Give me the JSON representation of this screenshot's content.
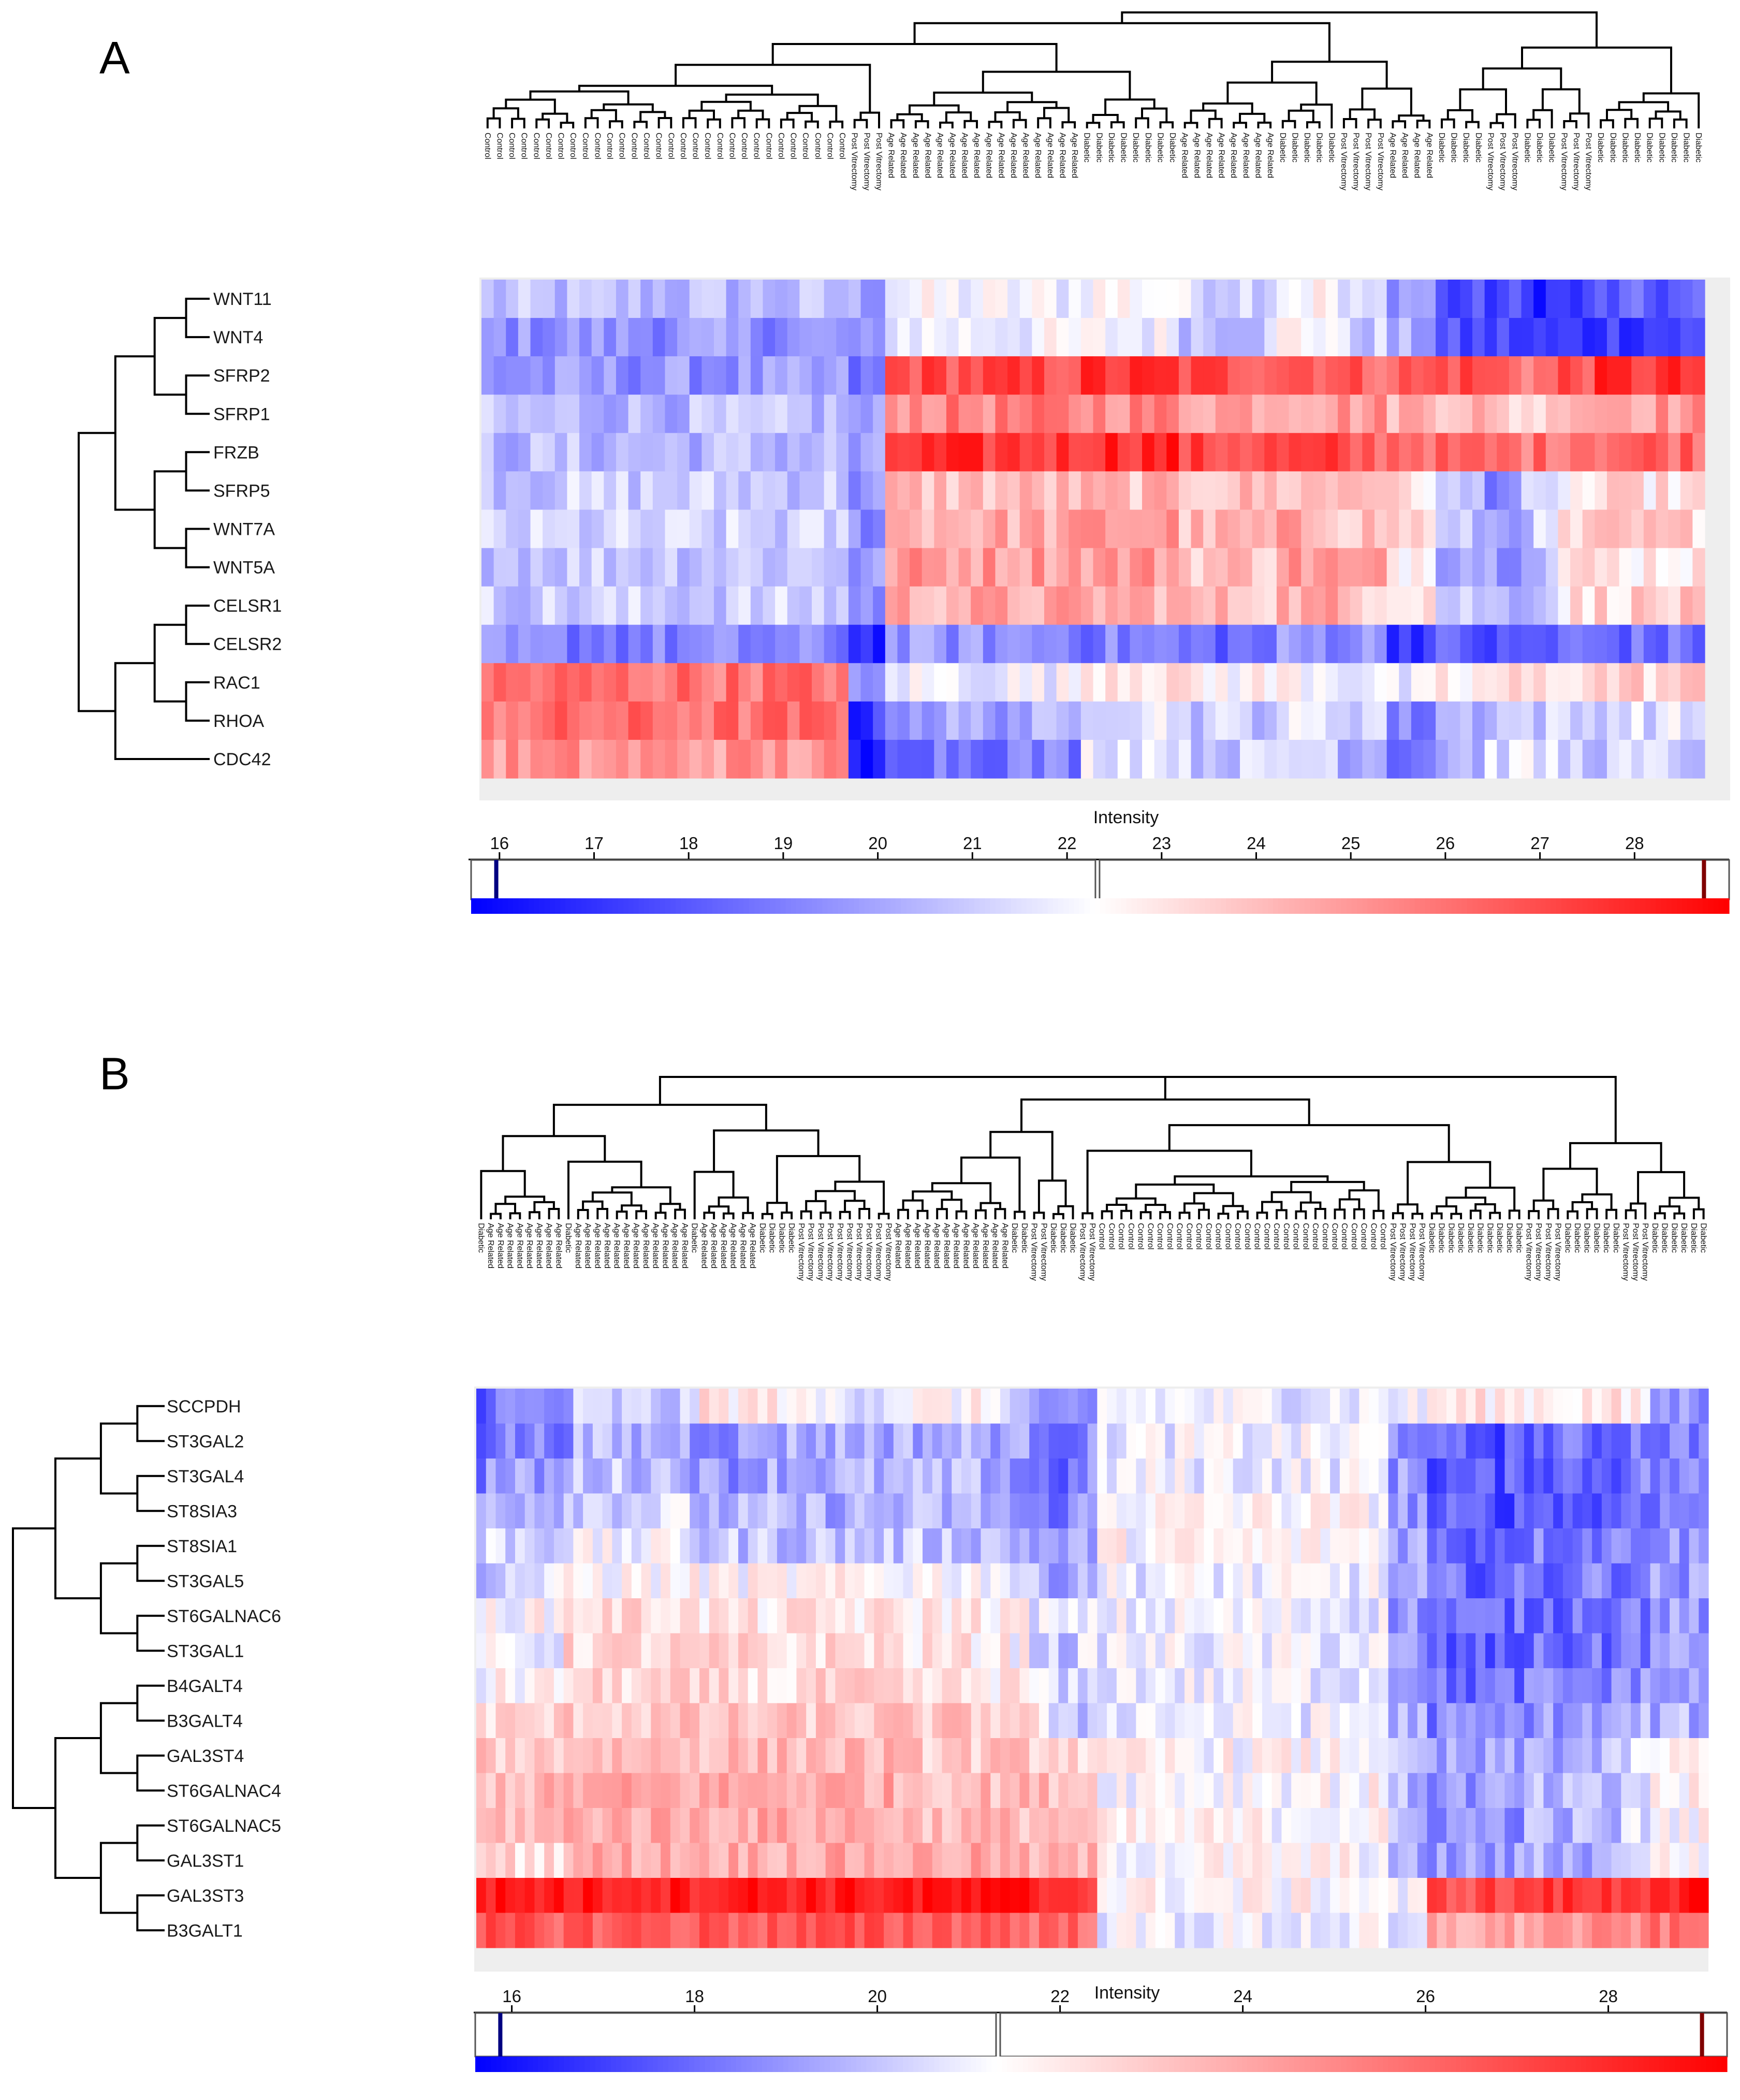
{
  "colors": {
    "low": "#0000ff",
    "mid": "#ffffff",
    "high": "#ff0000",
    "panel_bg": "#eeeeee",
    "marker_low": "#000080",
    "marker_high": "#800000"
  },
  "chart_data": [
    {
      "panel": "A",
      "type": "heatmap",
      "colorbar_title": "Intensity",
      "colorbar_ticks": [
        16,
        17,
        18,
        19,
        20,
        21,
        22,
        23,
        24,
        25,
        26,
        27,
        28
      ],
      "color_range": [
        15.7,
        29.0
      ],
      "color_mid": 22.3,
      "genes": [
        "WNT11",
        "WNT4",
        "SFRP2",
        "SFRP1",
        "FRZB",
        "SFRP5",
        "WNT7A",
        "WNT5A",
        "CELSR1",
        "CELSR2",
        "RAC1",
        "RHOA",
        "CDC42"
      ],
      "sample_groups": [
        {
          "label": "Control",
          "count": 30
        },
        {
          "label": "Post Vitrectomy",
          "count": 3
        },
        {
          "label": "Age Related",
          "count": 16
        },
        {
          "label": "Diabetic",
          "count": 8
        },
        {
          "label": "Age Related",
          "count": 8
        },
        {
          "label": "Diabetic",
          "count": 5
        },
        {
          "label": "Post Vitrectomy",
          "count": 4
        },
        {
          "label": "Age Related",
          "count": 4
        },
        {
          "label": "Diabetic",
          "count": 4
        },
        {
          "label": "Post Vitrectomy",
          "count": 3
        },
        {
          "label": "Diabetic",
          "count": 3
        },
        {
          "label": "Post Vitrectomy",
          "count": 3
        },
        {
          "label": "Diabetic",
          "count": 9
        }
      ],
      "gene_group_means": [
        [
          20.5,
          20,
          22,
          22.5,
          21.5,
          22.5,
          21,
          20,
          17.5,
          17.5,
          17,
          17,
          18
        ],
        [
          19.5,
          19,
          22,
          22,
          21,
          22.5,
          21,
          20,
          17.5,
          17.5,
          17,
          17,
          17.5
        ],
        [
          19.5,
          18.5,
          27,
          27.5,
          27,
          27,
          26.5,
          26.5,
          27,
          26.5,
          26,
          27,
          27.5
        ],
        [
          20.5,
          19.5,
          25.5,
          25.5,
          25,
          25,
          25,
          24.5,
          24.5,
          23.5,
          23.5,
          25,
          25
        ],
        [
          20.5,
          19.5,
          27.5,
          28,
          27,
          27,
          26.5,
          26.5,
          26,
          26,
          26,
          26.5,
          26.5
        ],
        [
          21,
          19.5,
          24,
          24,
          24,
          24,
          24.5,
          23,
          20.5,
          19.5,
          20.5,
          22.5,
          23
        ],
        [
          21,
          19.5,
          24.5,
          25,
          24,
          24.5,
          24,
          23.5,
          20.5,
          20,
          21,
          23,
          23.5
        ],
        [
          21,
          19.5,
          25,
          25,
          24,
          25,
          24.5,
          23,
          20.5,
          20,
          21,
          23,
          23
        ],
        [
          21,
          19.5,
          24.5,
          24.5,
          24,
          24.5,
          24,
          23.5,
          21,
          20.5,
          21,
          23,
          23.5
        ],
        [
          19,
          17,
          19.5,
          19,
          18.5,
          19.5,
          19.5,
          17.5,
          18,
          17.5,
          18,
          18.5,
          18.5
        ],
        [
          26,
          19,
          22,
          23.5,
          22.5,
          22.5,
          22,
          21.5,
          22.5,
          23,
          23,
          23.5,
          23.5
        ],
        [
          26,
          17,
          20,
          22,
          21,
          21.5,
          21.5,
          19,
          20.5,
          21,
          21,
          21,
          21.5
        ],
        [
          25,
          16,
          19,
          22,
          21,
          21.5,
          20.5,
          19,
          20.5,
          21.5,
          21.5,
          21,
          21
        ]
      ]
    },
    {
      "panel": "B",
      "type": "heatmap",
      "colorbar_title": "Intensity",
      "colorbar_ticks": [
        16,
        18,
        20,
        22,
        24,
        26,
        28
      ],
      "color_range": [
        15.6,
        29.3
      ],
      "color_mid": 21.3,
      "genes": [
        "SCCPDH",
        "ST3GAL2",
        "ST3GAL4",
        "ST8SIA3",
        "ST8SIA1",
        "ST3GAL5",
        "ST6GALNAC6",
        "ST3GAL1",
        "B4GALT4",
        "B3GALT4",
        "GAL3ST4",
        "ST6GALNAC4",
        "ST6GALNAC5",
        "GAL3ST1",
        "GAL3ST3",
        "B3GALT1"
      ],
      "sample_groups": [
        {
          "label": "Diabetic",
          "count": 1
        },
        {
          "label": "Age Related",
          "count": 8
        },
        {
          "label": "Diabetic",
          "count": 1
        },
        {
          "label": "Age Related",
          "count": 12
        },
        {
          "label": "Diabetic",
          "count": 1
        },
        {
          "label": "Age Related",
          "count": 6
        },
        {
          "label": "Diabetic",
          "count": 4
        },
        {
          "label": "Post Vitrectomy",
          "count": 10
        },
        {
          "label": "Age Related",
          "count": 12
        },
        {
          "label": "Diabetic",
          "count": 2
        },
        {
          "label": "Post Vitrectomy",
          "count": 2
        },
        {
          "label": "Diabetic",
          "count": 3
        },
        {
          "label": "Post Vitrectomy",
          "count": 2
        },
        {
          "label": "Control",
          "count": 30
        },
        {
          "label": "Post Vitrectomy",
          "count": 4
        },
        {
          "label": "Diabetic",
          "count": 10
        },
        {
          "label": "Post Vitrectomy",
          "count": 4
        },
        {
          "label": "Diabetic",
          "count": 6
        },
        {
          "label": "Post Vitrectomy",
          "count": 3
        },
        {
          "label": "Diabetic",
          "count": 6
        }
      ],
      "gene_group_means": [
        [
          18,
          18.5,
          19,
          20,
          21,
          22,
          22,
          21,
          21.5,
          19.5,
          19,
          18,
          18,
          21,
          21,
          22,
          22,
          22,
          21.5,
          19
        ],
        [
          18,
          18.5,
          19,
          19.5,
          19,
          19,
          19.5,
          19.5,
          19.5,
          19,
          19,
          18.5,
          18.5,
          21,
          19,
          17.5,
          18,
          18,
          18.5,
          18.5
        ],
        [
          18.5,
          19,
          19.5,
          20,
          19.5,
          19,
          19.5,
          19.5,
          19.5,
          18.5,
          18,
          18,
          18.5,
          21,
          19,
          17.5,
          18,
          18,
          18.5,
          18.5
        ],
        [
          19.5,
          20,
          20.5,
          20.5,
          20,
          19.5,
          19.5,
          19.5,
          19.5,
          18.5,
          18,
          18.5,
          19,
          21.5,
          19,
          17.5,
          18,
          17.5,
          18.5,
          18.5
        ],
        [
          20,
          20.5,
          21,
          21,
          20.5,
          20,
          20,
          20,
          20,
          19.5,
          19.5,
          19,
          19.5,
          21.5,
          19.5,
          18,
          18.5,
          18.5,
          19,
          19
        ],
        [
          18.5,
          20.5,
          21.5,
          21.5,
          21.5,
          21.5,
          21.5,
          21.5,
          21.5,
          20.5,
          19.5,
          19.5,
          20,
          21,
          19,
          18,
          18,
          18.5,
          18.5,
          19
        ],
        [
          21,
          21.5,
          22.5,
          22.5,
          22,
          22,
          22,
          22,
          22,
          21.5,
          21,
          20.5,
          20.5,
          21,
          19,
          18,
          18,
          18.5,
          18.5,
          19
        ],
        [
          20,
          21,
          22.5,
          22.5,
          22.5,
          22.5,
          22,
          22.5,
          22,
          21.5,
          20.5,
          20,
          20.5,
          21,
          19,
          17.5,
          18,
          18,
          18.5,
          19
        ],
        [
          21,
          21.5,
          22.5,
          22.5,
          22,
          22.5,
          22,
          22.5,
          22,
          22,
          21,
          20,
          20,
          21,
          19.5,
          18,
          18.5,
          18.5,
          19,
          19
        ],
        [
          22.5,
          22.5,
          23,
          23,
          23,
          23,
          23,
          23,
          23,
          23,
          22,
          19.5,
          20,
          21,
          19.5,
          18.5,
          19,
          19,
          19.5,
          19.5
        ],
        [
          23,
          23,
          23.5,
          23.5,
          23.5,
          23.5,
          23.5,
          23.5,
          23,
          23,
          23,
          23,
          22.5,
          21.5,
          19.5,
          19,
          19.5,
          19.5,
          20.5,
          21.5
        ],
        [
          23,
          23.5,
          24,
          24,
          24,
          24,
          24,
          24,
          23.5,
          23.5,
          23.5,
          23.5,
          23,
          21.5,
          19.5,
          19,
          19.5,
          19.5,
          20.5,
          21.5
        ],
        [
          23,
          23.5,
          24,
          24,
          24,
          24,
          24,
          24,
          23.5,
          23.5,
          23.5,
          23.5,
          23,
          21.5,
          19.5,
          19,
          19.5,
          19.5,
          20.5,
          21.5
        ],
        [
          23.5,
          22.5,
          24,
          24,
          24,
          24,
          24,
          24,
          24,
          23.5,
          23.5,
          23.5,
          23.5,
          21.5,
          19,
          19,
          19.5,
          19.5,
          21,
          21.5
        ],
        [
          28.5,
          28.5,
          28.5,
          28.5,
          28.5,
          28.5,
          28.5,
          28.5,
          28.5,
          28.5,
          28,
          28,
          28,
          21.5,
          21,
          27,
          27.5,
          27.5,
          28,
          28.5
        ],
        [
          26,
          26.5,
          26.5,
          26.5,
          26.5,
          26.5,
          26.5,
          26.5,
          26.5,
          26,
          26,
          26,
          26,
          21,
          20,
          24,
          24.5,
          24.5,
          25,
          25.5
        ]
      ]
    }
  ],
  "panels": [
    {
      "letter": "A"
    },
    {
      "letter": "B"
    }
  ]
}
